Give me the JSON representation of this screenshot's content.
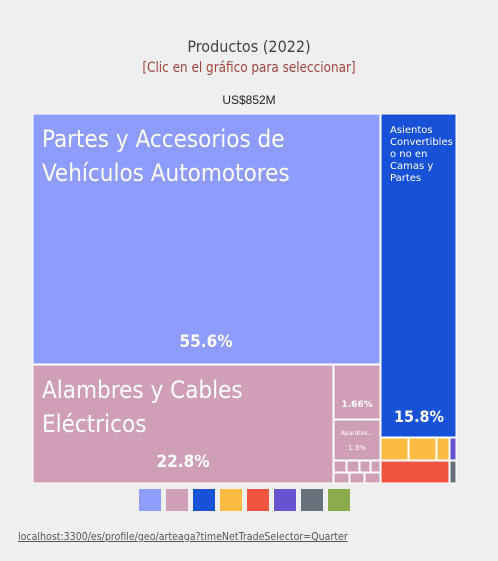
{
  "header": {
    "title": "Productos (2022)",
    "subtitle": "[Clic en el gráfico para seleccionar]",
    "total": "US$852M"
  },
  "chart_data": {
    "type": "treemap",
    "title": "Productos (2022)",
    "total_label": "US$852M",
    "items": [
      {
        "label": "Partes y Accesorios de Vehículos Automotores",
        "share_label": "55.6%",
        "value": 55.6,
        "color": "#8e9bff"
      },
      {
        "label": "Alambres y Cables Eléctricos",
        "share_label": "22.8%",
        "value": 22.8,
        "color": "#cf9fb8"
      },
      {
        "label": "Asientos Convertibles o no en Camas y Partes",
        "share_label": "15.8%",
        "value": 15.8,
        "color": "#1751d8"
      },
      {
        "label": "",
        "share_label": "1.66%",
        "value": 1.66,
        "color": "#cf9fb8"
      },
      {
        "label": "Aparatos...",
        "share_label": "1.3%",
        "value": 1.3,
        "color": "#cf9fb8"
      }
    ]
  },
  "legend": {
    "colors": [
      "#8e9bff",
      "#cf9fb8",
      "#1751d8",
      "#fbbc41",
      "#f15441",
      "#6553d0",
      "#66717b",
      "#8bac4c"
    ]
  },
  "footer": {
    "url": "localhost:3300/es/profile/geo/arteaga?timeNetTradeSelector=Quarter"
  }
}
